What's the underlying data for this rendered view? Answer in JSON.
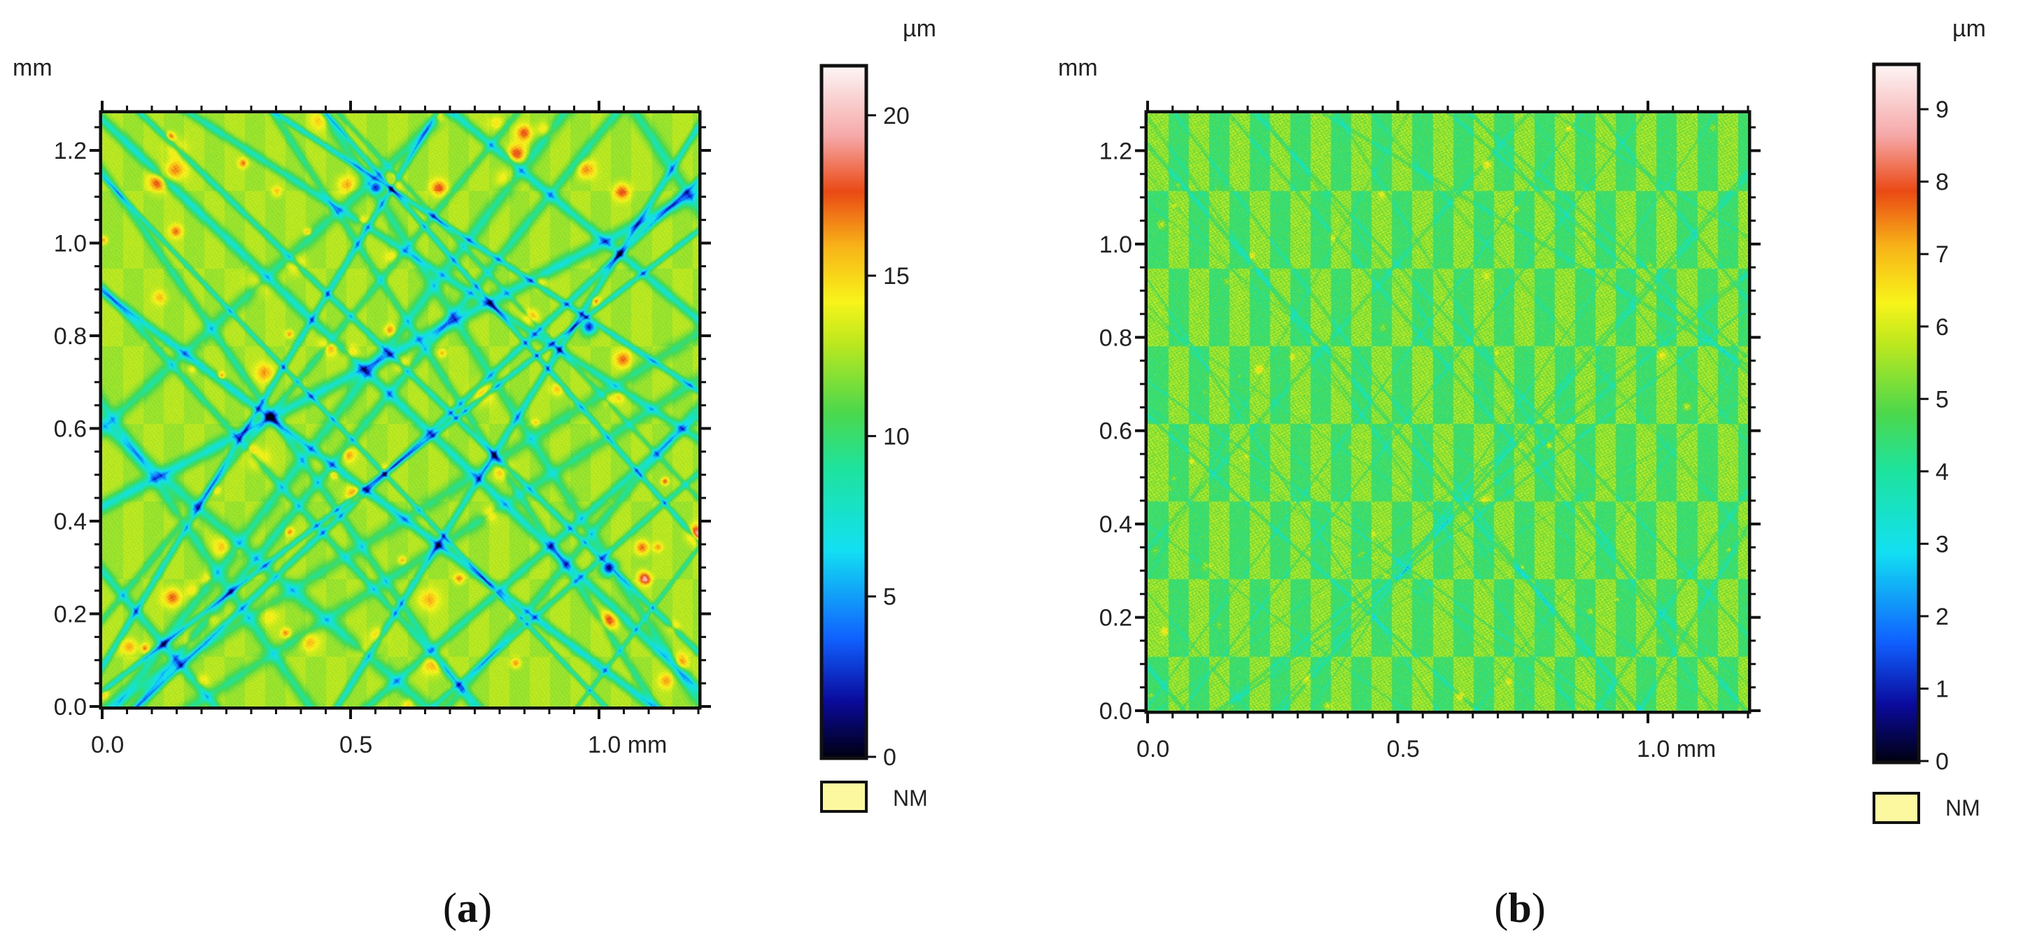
{
  "chart_data": [
    {
      "id": "a",
      "type": "heatmap",
      "panel_label": "a",
      "x_unit": "mm",
      "y_unit": "mm",
      "colorbar_unit": "µm",
      "xlim": [
        0,
        1.2
      ],
      "ylim": [
        0,
        1.28
      ],
      "x_ticks": [
        0,
        0.5,
        1.0
      ],
      "x_tick_labels": [
        "0.0",
        "0.5",
        "1.0 mm"
      ],
      "y_ticks": [
        0,
        0.2,
        0.4,
        0.6,
        0.8,
        1.0,
        1.2
      ],
      "y_tick_labels": [
        "0.0",
        "0.2",
        "0.4",
        "0.6",
        "0.8",
        "1.0",
        "1.2"
      ],
      "colorbar_range": [
        0,
        21.5
      ],
      "colorbar_ticks": [
        0,
        5,
        10,
        15,
        20
      ],
      "colorbar_tick_labels": [
        "0",
        "5",
        "10",
        "15",
        "20"
      ],
      "nm_legend": "NM",
      "nm_color": "#fcf8a0",
      "surface": {
        "base_height": 12.8,
        "groove_count": 32,
        "groove_depth": [
          3.5,
          7.0
        ],
        "pit_count": 90,
        "peak_height": [
          15.0,
          18.0
        ],
        "deep_pits": [
          {
            "x": 1.02,
            "y": 0.3,
            "depth": 1.6
          },
          {
            "x": 0.98,
            "y": 0.82,
            "depth": 2.8
          },
          {
            "x": 0.55,
            "y": 1.12,
            "depth": 3.0
          }
        ],
        "seed": 7
      }
    },
    {
      "id": "b",
      "type": "heatmap",
      "panel_label": "b",
      "x_unit": "mm",
      "y_unit": "mm",
      "colorbar_unit": "µm",
      "xlim": [
        0,
        1.2
      ],
      "ylim": [
        0,
        1.28
      ],
      "x_ticks": [
        0,
        0.5,
        1.0
      ],
      "x_tick_labels": [
        "0.0",
        "0.5",
        "1.0 mm"
      ],
      "y_ticks": [
        0,
        0.2,
        0.4,
        0.6,
        0.8,
        1.0,
        1.2
      ],
      "y_tick_labels": [
        "0.0",
        "0.2",
        "0.4",
        "0.6",
        "0.8",
        "1.0",
        "1.2"
      ],
      "colorbar_range": [
        0,
        9.6
      ],
      "colorbar_ticks": [
        0,
        1,
        2,
        3,
        4,
        5,
        6,
        7,
        8,
        9
      ],
      "colorbar_tick_labels": [
        "0",
        "1",
        "2",
        "3",
        "4",
        "5",
        "6",
        "7",
        "8",
        "9"
      ],
      "nm_legend": "NM",
      "nm_color": "#fcf8a0",
      "surface": {
        "base_height": 5.4,
        "groove_count": 40,
        "groove_depth": [
          0.4,
          1.2
        ],
        "pit_count": 50,
        "peak_height": [
          6.0,
          7.0
        ],
        "deep_pits": [],
        "seed": 19
      }
    }
  ],
  "colormap": [
    {
      "v": 0.0,
      "color": "#000014"
    },
    {
      "v": 0.08,
      "color": "#0a0a9c"
    },
    {
      "v": 0.17,
      "color": "#1060ff"
    },
    {
      "v": 0.3,
      "color": "#12e0f2"
    },
    {
      "v": 0.42,
      "color": "#1ee39c"
    },
    {
      "v": 0.5,
      "color": "#4cd84c"
    },
    {
      "v": 0.6,
      "color": "#bde81e"
    },
    {
      "v": 0.66,
      "color": "#f8f41a"
    },
    {
      "v": 0.74,
      "color": "#f8b418"
    },
    {
      "v": 0.82,
      "color": "#ea4a14"
    },
    {
      "v": 0.9,
      "color": "#f6a8a8"
    },
    {
      "v": 1.0,
      "color": "#fdf4f4"
    }
  ]
}
